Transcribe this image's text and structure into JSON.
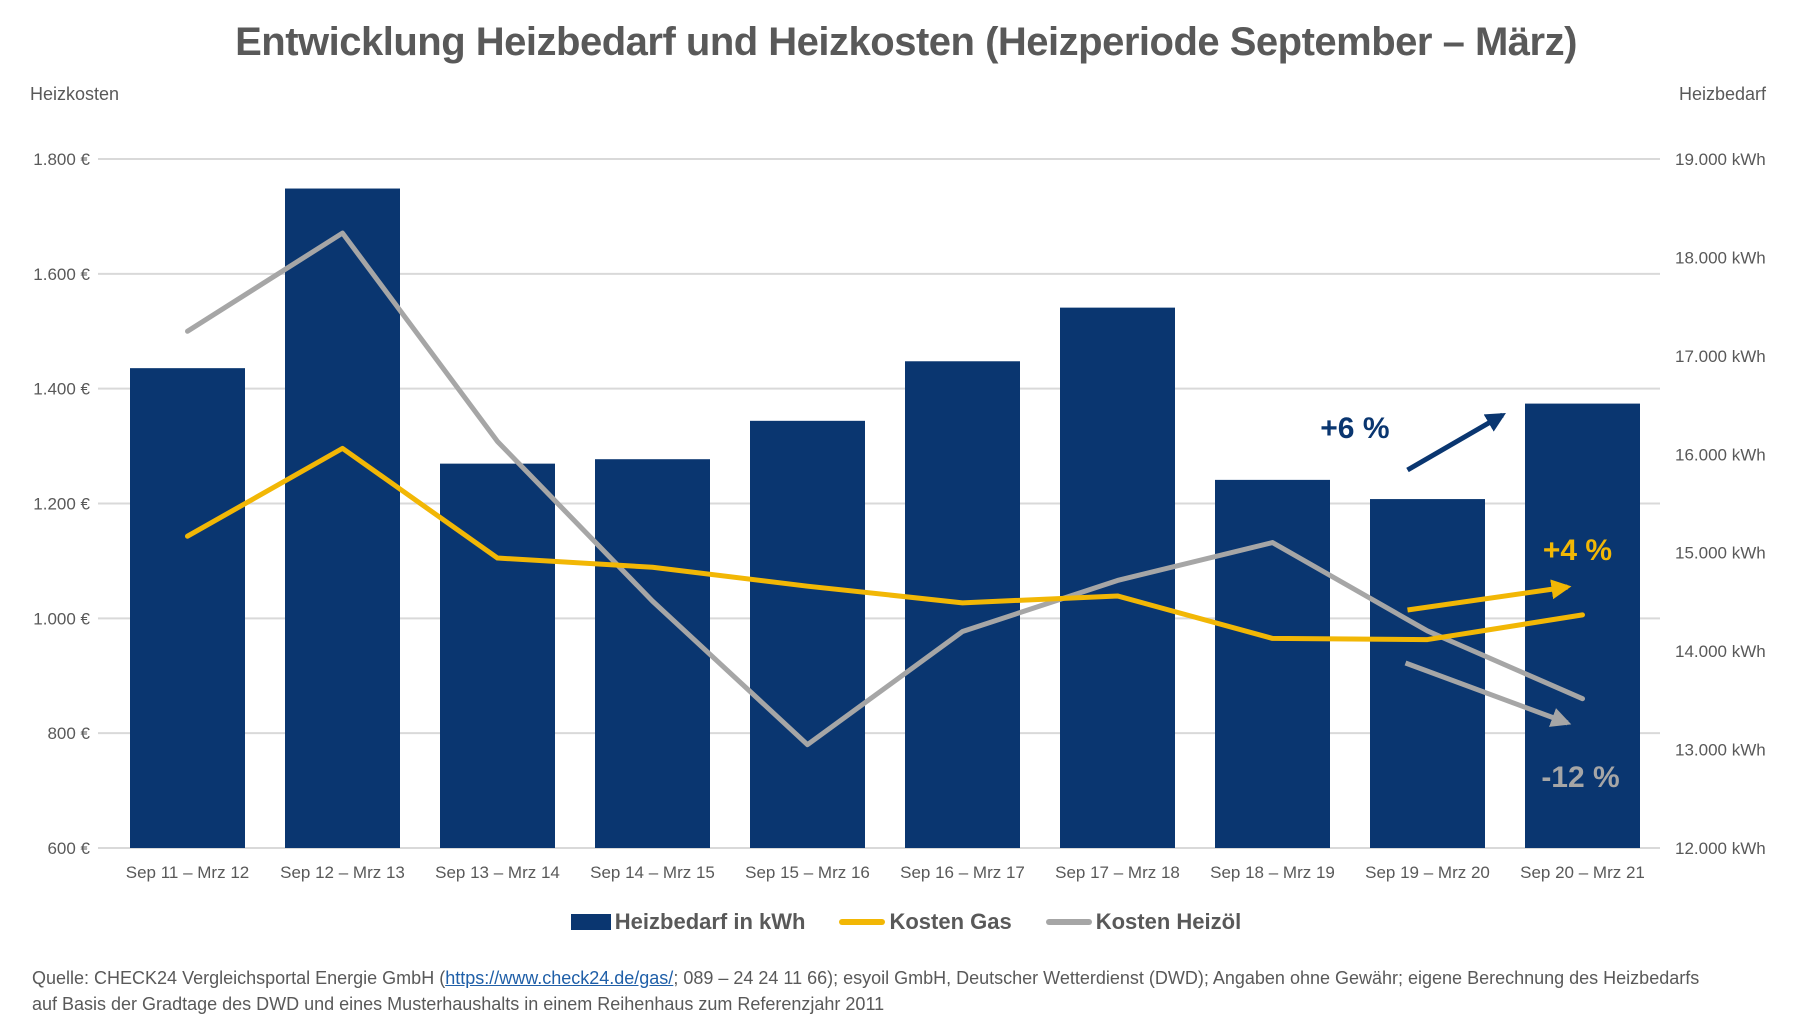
{
  "title": "Entwicklung Heizbedarf und Heizkosten (Heizperiode September – März)",
  "colors": {
    "bar": "#0a3670",
    "gas": "#f2b705",
    "oil": "#a6a6a6",
    "grid": "#d9d9d9",
    "text": "#595959",
    "arrow_bar": "#0a3670"
  },
  "chart_data": {
    "type": "bar+line",
    "title": "Entwicklung Heizbedarf und Heizkosten (Heizperiode September – März)",
    "categories": [
      "Sep 11 – Mrz 12",
      "Sep 12 – Mrz 13",
      "Sep 13 – Mrz 14",
      "Sep 14 – Mrz 15",
      "Sep 15 – Mrz 16",
      "Sep 16 – Mrz 17",
      "Sep 17 – Mrz 18",
      "Sep 18 – Mrz 19",
      "Sep 19 – Mrz 20",
      "Sep 20 – Mrz 21"
    ],
    "left_axis": {
      "label": "Heizkosten",
      "ylim": [
        600,
        1800
      ],
      "ticks": [
        600,
        800,
        1000,
        1200,
        1400,
        1600,
        1800
      ],
      "tick_labels": [
        "600 €",
        "800 €",
        "1.000 €",
        "1.200 €",
        "1.400 €",
        "1.600 €",
        "1.800 €"
      ]
    },
    "right_axis": {
      "label": "Heizbedarf",
      "ylim": [
        12000,
        19000
      ],
      "ticks": [
        12000,
        13000,
        14000,
        15000,
        16000,
        17000,
        18000,
        19000
      ],
      "tick_labels": [
        "12.000  kWh",
        "13.000  kWh",
        "14.000  kWh",
        "15.000  kWh",
        "16.000  kWh",
        "17.000  kWh",
        "18.000  kWh",
        "19.000  kWh"
      ]
    },
    "grid": true,
    "legend_position": "bottom",
    "series": [
      {
        "name": "Heizbedarf in kWh",
        "type": "bar",
        "axis": "right",
        "values": [
          16875,
          18700,
          15905,
          15950,
          16340,
          16945,
          17490,
          15740,
          15545,
          16515
        ]
      },
      {
        "name": "Kosten Gas",
        "type": "line",
        "axis": "left",
        "values": [
          1143,
          1296,
          1105,
          1089,
          1056,
          1027,
          1039,
          965,
          963,
          1006
        ]
      },
      {
        "name": "Kosten Heizöl",
        "type": "line",
        "axis": "left",
        "values": [
          1500,
          1671,
          1308,
          1030,
          780,
          977,
          1066,
          1132,
          978,
          860
        ]
      }
    ],
    "annotations": [
      {
        "text": "+6 %",
        "series": "Heizbedarf in kWh",
        "direction": "up"
      },
      {
        "text": "+4 %",
        "series": "Kosten Gas",
        "direction": "up"
      },
      {
        "text": "-12 %",
        "series": "Kosten Heizöl",
        "direction": "down"
      }
    ]
  },
  "legend": [
    {
      "label": "Heizbedarf in kWh",
      "kind": "bar"
    },
    {
      "label": "Kosten Gas",
      "kind": "gas"
    },
    {
      "label": "Kosten Heizöl",
      "kind": "oil"
    }
  ],
  "footer": {
    "prefix": "Quelle: CHECK24 Vergleichsportal Energie GmbH (",
    "link": "https://www.check24.de/gas/",
    "suffix": "; 089 – 24 24 11 66); esyoil GmbH, Deutscher Wetterdienst (DWD); Angaben ohne Gewähr; eigene Berechnung des Heizbedarfs",
    "line2": "auf Basis der Gradtage des DWD und eines Musterhaushalts in einem Reihenhaus zum Referenzjahr 2011"
  }
}
